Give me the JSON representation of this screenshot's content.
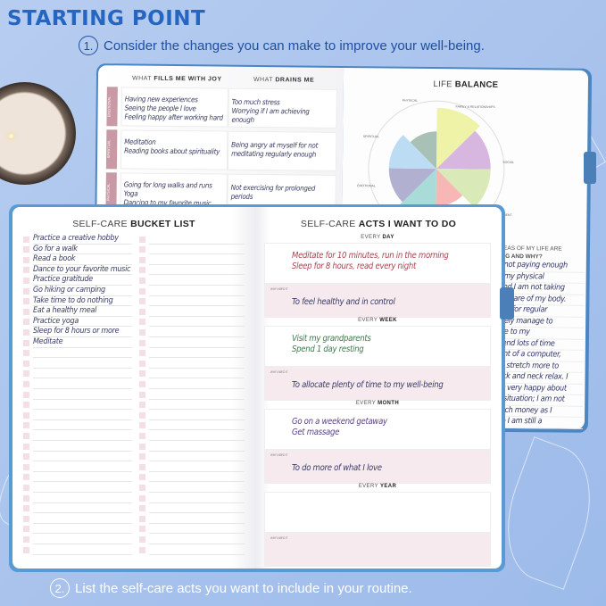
{
  "title": "STARTING POINT",
  "step1": {
    "num": "1.",
    "text": "Consider the changes you can make to improve your well-being."
  },
  "step2": {
    "num": "2.",
    "text": "List the self-care acts you want to include in your routine."
  },
  "back_left": {
    "col1_pre": "WHAT ",
    "col1_bold": "FILLS ME WITH JOY",
    "col2_pre": "WHAT ",
    "col2_bold": "DRAINS ME",
    "rows": [
      {
        "tag": "EMOTIONAL",
        "joy": [
          "Having new experiences",
          "Seeing the people I love",
          "Feeling happy after working hard"
        ],
        "drain": [
          "Too much stress",
          "Worrying if I am achieving enough"
        ]
      },
      {
        "tag": "SPIRITUAL",
        "joy": [
          "Meditation",
          "Reading books about spirituality"
        ],
        "drain": [
          "Being angry at myself for not",
          "meditating regularly enough"
        ]
      },
      {
        "tag": "PHYSICAL",
        "joy": [
          "Going for long walks and runs",
          "Yoga",
          "Dancing to my favorite music"
        ],
        "drain": [
          "Not exercising for prolonged periods"
        ]
      }
    ]
  },
  "life_balance": {
    "pre": "LIFE ",
    "bold": "BALANCE",
    "labels": [
      "PHYSICAL",
      "FAMILY & RELATIONSHIPS",
      "SOCIAL",
      "PERSONAL DEVELOPMENT",
      "EMOTIONAL",
      "SPIRITUAL"
    ],
    "segments": [
      {
        "color": "#eef3a8",
        "level": 0.9
      },
      {
        "color": "#d7b6e0",
        "level": 0.8
      },
      {
        "color": "#d9eab8",
        "level": 0.8
      },
      {
        "color": "#f7b7b5",
        "level": 0.55
      },
      {
        "color": "#a9dcd9",
        "level": 0.85
      },
      {
        "color": "#b2b0d0",
        "level": 0.7
      },
      {
        "color": "#bcdcf3",
        "level": 0.7
      },
      {
        "color": "#a9c0b6",
        "level": 0.55
      }
    ]
  },
  "back_right": {
    "q1": "AREAS OF MY LIFE ARE",
    "q2": "KING AND WHY?",
    "lines": [
      "m not paying enough",
      "to my physical",
      ", and I am not taking",
      "ugh care of my body.",
      "time for regular",
      "rarely manage to",
      "Due to my",
      "spend lots of time",
      "front of a computer,",
      "uld stretch more to",
      "back and neck relax. I",
      "not very happy about",
      "ial situation; I am not",
      "much money as I",
      "use I am still a"
    ]
  },
  "bucket": {
    "pre": "SELF-CARE ",
    "bold": "BUCKET LIST",
    "items": [
      "Practice a creative hobby",
      "Go for a walk",
      "Read a book",
      "Dance to your favorite music",
      "Practice gratitude",
      "Go hiking or camping",
      "Take time to do nothing",
      "Eat a healthy meal",
      "Practice yoga",
      "Sleep for 8 hours or more",
      "Meditate"
    ]
  },
  "acts": {
    "pre": "SELF-CARE ",
    "bold": "ACTS I WANT TO DO",
    "why_label": "WHY I NEED IT",
    "sections": [
      {
        "pre": "EVERY ",
        "bold": "DAY",
        "color": "#a5454e",
        "acts": [
          "Meditate for 10 minutes, run in the morning",
          "Sleep for 8 hours, read every night"
        ],
        "why": "To feel healthy and in control"
      },
      {
        "pre": "EVERY ",
        "bold": "WEEK",
        "color": "#3d7a4c",
        "acts": [
          "Visit my grandparents",
          "Spend 1 day resting"
        ],
        "why": "To allocate plenty of time to my well-being"
      },
      {
        "pre": "EVERY ",
        "bold": "MONTH",
        "color": "#5b3f85",
        "acts": [
          "Go on a weekend getaway",
          "Get massage"
        ],
        "why": "To do more of what I love"
      },
      {
        "pre": "EVERY ",
        "bold": "YEAR",
        "color": "#5b3f85",
        "acts": [
          "",
          ""
        ],
        "why": ""
      }
    ]
  }
}
